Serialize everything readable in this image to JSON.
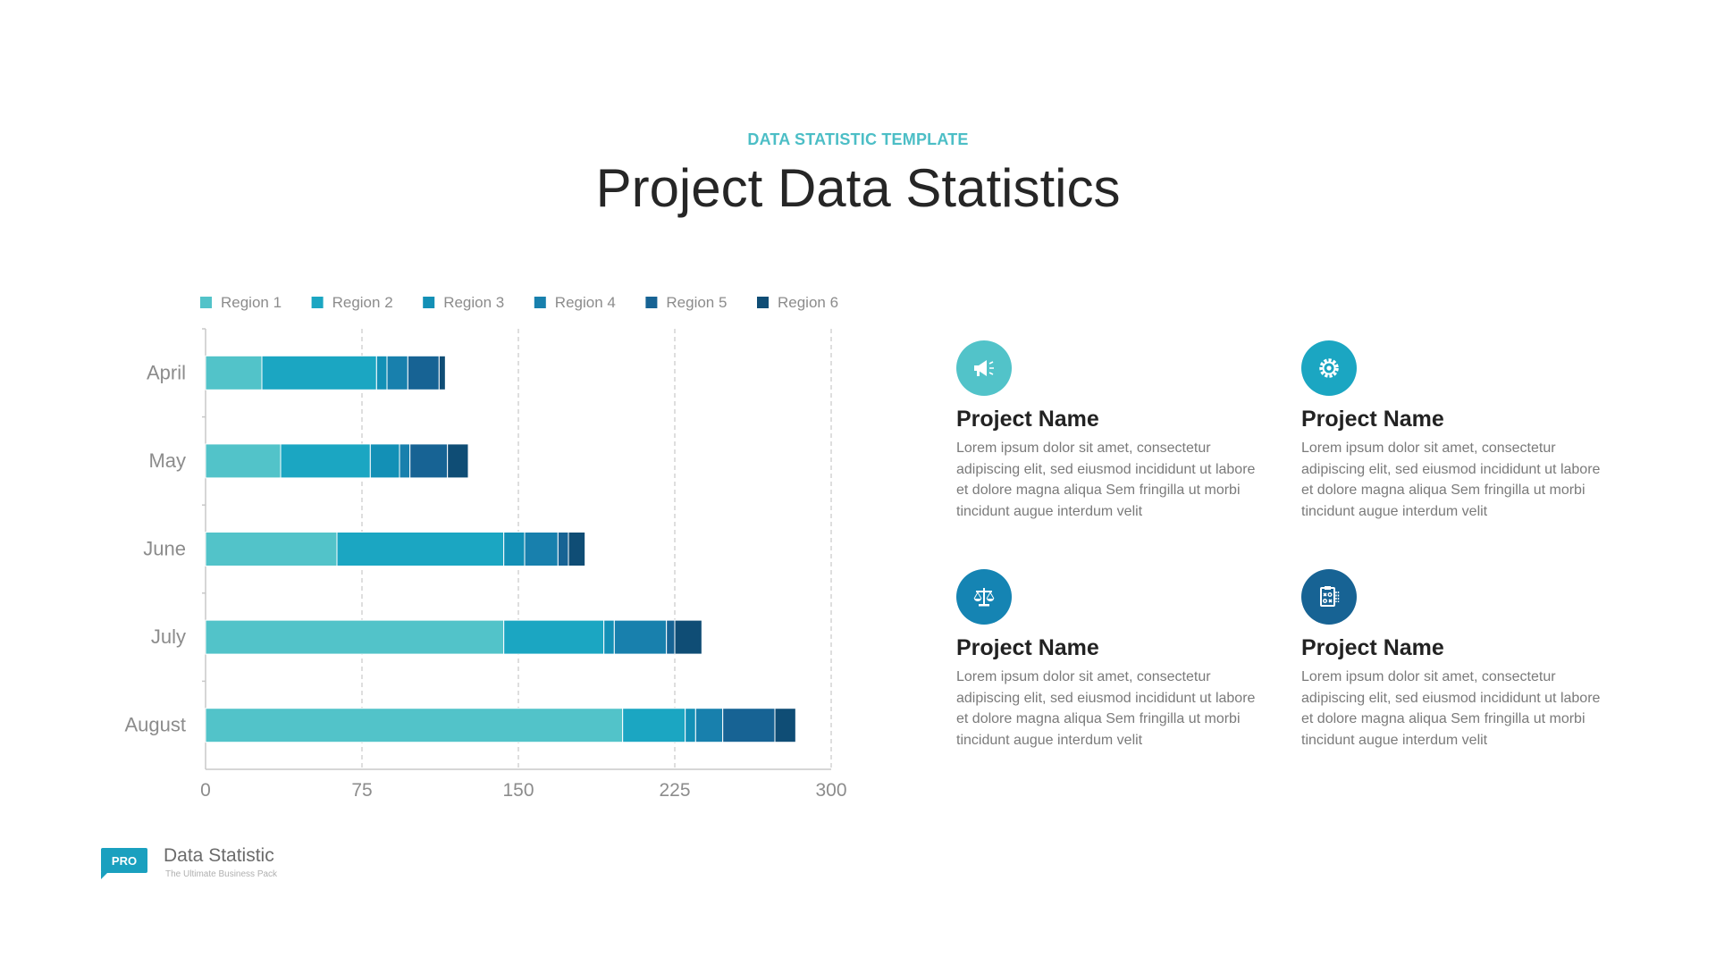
{
  "header": {
    "subtitle": "DATA STATISTIC TEMPLATE",
    "title": "Project Data Statistics"
  },
  "colors": {
    "accent": "#4cbec6",
    "title": "#262626",
    "series": [
      "#52c3c9",
      "#1ba6c2",
      "#1390b6",
      "#1880ad",
      "#176394",
      "#0f4d75"
    ]
  },
  "chart_data": {
    "type": "bar",
    "orientation": "horizontal",
    "stacked": true,
    "categories": [
      "April",
      "May",
      "June",
      "July",
      "August"
    ],
    "series": [
      {
        "name": "Region 1",
        "values": [
          27,
          36,
          63,
          143,
          200
        ]
      },
      {
        "name": "Region 2",
        "values": [
          55,
          43,
          80,
          48,
          30
        ]
      },
      {
        "name": "Region 3",
        "values": [
          5,
          14,
          10,
          5,
          5
        ]
      },
      {
        "name": "Region 4",
        "values": [
          10,
          5,
          16,
          25,
          13
        ]
      },
      {
        "name": "Region 5",
        "values": [
          15,
          18,
          5,
          4,
          25
        ]
      },
      {
        "name": "Region 6",
        "values": [
          3,
          10,
          8,
          13,
          10
        ]
      }
    ],
    "xlim": [
      0,
      300
    ],
    "xticks": [
      "0",
      "75",
      "150",
      "225",
      "300"
    ],
    "grid": "vertical dashed",
    "legend": "top"
  },
  "cards": [
    {
      "icon": "megaphone-icon",
      "color": "#52c3c9",
      "title": "Project Name",
      "text": "Lorem ipsum dolor sit amet, consectetur adipiscing elit, sed eiusmod incididunt ut labore et dolore magna aliqua Sem fringilla ut morbi tincidunt augue interdum velit"
    },
    {
      "icon": "gear-icon",
      "color": "#1ba6c2",
      "title": "Project Name",
      "text": "Lorem ipsum dolor sit amet, consectetur adipiscing elit, sed eiusmod incididunt ut labore et dolore magna aliqua Sem fringilla ut morbi tincidunt augue interdum velit"
    },
    {
      "icon": "scales-icon",
      "color": "#1584b3",
      "title": "Project Name",
      "text": "Lorem ipsum dolor sit amet, consectetur adipiscing elit, sed eiusmod incididunt ut labore et dolore magna aliqua Sem fringilla ut morbi tincidunt augue interdum velit"
    },
    {
      "icon": "strategy-board-icon",
      "color": "#176394",
      "title": "Project Name",
      "text": "Lorem ipsum dolor sit amet, consectetur adipiscing elit, sed eiusmod incididunt ut labore et dolore magna aliqua Sem fringilla ut morbi tincidunt augue interdum velit"
    }
  ],
  "footer": {
    "badge": "PRO",
    "badge_color": "#1aa0bf",
    "name": "Data Statistic",
    "tagline": "The Ultimate Business Pack"
  }
}
